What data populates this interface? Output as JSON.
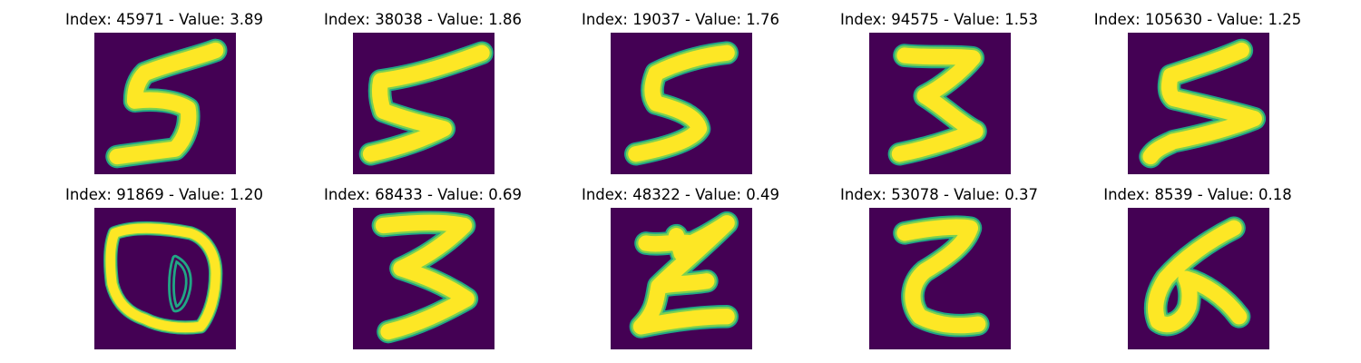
{
  "grid": {
    "rows": 2,
    "cols": 5
  },
  "colors": {
    "background": "#440154",
    "stroke_edge": "#21a685",
    "stroke_mid": "#7ad151",
    "stroke_core": "#fde725"
  },
  "panels": [
    {
      "index": "45971",
      "value": "3.89",
      "title": "Index: 45971 - Value: 3.89",
      "glyph": "5"
    },
    {
      "index": "38038",
      "value": "1.86",
      "title": "Index: 38038 - Value: 1.86",
      "glyph": "5"
    },
    {
      "index": "19037",
      "value": "1.76",
      "title": "Index: 19037 - Value: 1.76",
      "glyph": "5"
    },
    {
      "index": "94575",
      "value": "1.53",
      "title": "Index: 94575 - Value: 1.53",
      "glyph": "3"
    },
    {
      "index": "105630",
      "value": "1.25",
      "title": "Index: 105630 - Value: 1.25",
      "glyph": "5"
    },
    {
      "index": "91869",
      "value": "1.20",
      "title": "Index: 91869 - Value: 1.20",
      "glyph": "blob"
    },
    {
      "index": "68433",
      "value": "0.69",
      "title": "Index: 68433 - Value: 0.69",
      "glyph": "3"
    },
    {
      "index": "48322",
      "value": "0.49",
      "title": "Index: 48322 - Value: 0.49",
      "glyph": "z-cross"
    },
    {
      "index": "53078",
      "value": "0.37",
      "title": "Index: 53078 - Value: 0.37",
      "glyph": "2-reversed"
    },
    {
      "index": "8539",
      "value": "0.18",
      "title": "Index: 8539 - Value: 0.18",
      "glyph": "6-loop"
    }
  ]
}
